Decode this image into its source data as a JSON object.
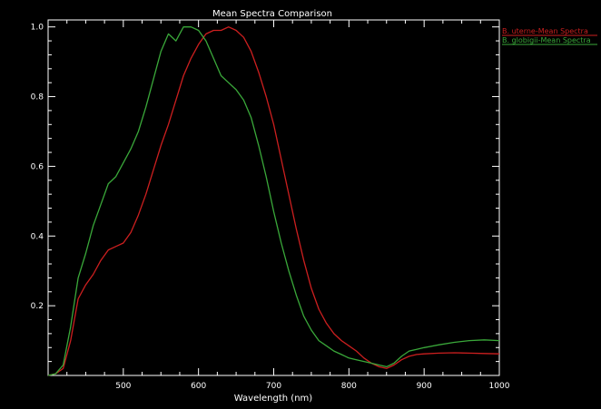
{
  "chart_data": {
    "type": "line",
    "title": "Mean Spectra Comparison",
    "xlabel": "Wavelength (nm)",
    "ylabel": "",
    "xlim": [
      400,
      1000
    ],
    "ylim": [
      0,
      1.02
    ],
    "x_ticks": [
      500,
      600,
      700,
      800,
      900,
      1000
    ],
    "y_ticks": [
      0.2,
      0.4,
      0.6,
      0.8,
      1.0
    ],
    "x_tick_labels": [
      "500",
      "600",
      "700",
      "800",
      "900",
      "1000"
    ],
    "y_tick_labels": [
      "0.2",
      "0.4",
      "0.6",
      "0.8",
      "1.0"
    ],
    "grid": false,
    "legend_position": "top-right-outside",
    "axis_color": "#ffffff",
    "background": "#000000",
    "series": [
      {
        "name": "B. uterne-Mean Spectra",
        "color": "#cc1f1f",
        "x": [
          400,
          410,
          420,
          430,
          440,
          450,
          460,
          470,
          480,
          490,
          500,
          510,
          520,
          530,
          540,
          550,
          560,
          570,
          580,
          590,
          600,
          610,
          620,
          630,
          640,
          650,
          660,
          670,
          680,
          690,
          700,
          710,
          720,
          730,
          740,
          750,
          760,
          770,
          780,
          790,
          800,
          810,
          820,
          830,
          840,
          850,
          860,
          870,
          880,
          890,
          900,
          920,
          940,
          960,
          980,
          1000
        ],
        "y": [
          0.0,
          0.005,
          0.02,
          0.1,
          0.22,
          0.26,
          0.29,
          0.33,
          0.36,
          0.37,
          0.38,
          0.41,
          0.46,
          0.52,
          0.59,
          0.66,
          0.72,
          0.79,
          0.86,
          0.91,
          0.95,
          0.98,
          0.99,
          0.99,
          1.0,
          0.99,
          0.97,
          0.93,
          0.87,
          0.8,
          0.72,
          0.62,
          0.52,
          0.42,
          0.33,
          0.25,
          0.19,
          0.15,
          0.12,
          0.1,
          0.085,
          0.07,
          0.05,
          0.035,
          0.025,
          0.02,
          0.03,
          0.045,
          0.055,
          0.06,
          0.062,
          0.064,
          0.065,
          0.064,
          0.063,
          0.062
        ]
      },
      {
        "name": "B. globigii-Mean Spectra",
        "color": "#3aa83a",
        "x": [
          400,
          410,
          420,
          430,
          440,
          450,
          460,
          470,
          480,
          490,
          500,
          510,
          520,
          530,
          540,
          550,
          560,
          570,
          580,
          590,
          600,
          610,
          620,
          630,
          640,
          650,
          660,
          670,
          680,
          690,
          700,
          710,
          720,
          730,
          740,
          750,
          760,
          770,
          780,
          790,
          800,
          810,
          820,
          830,
          840,
          850,
          860,
          870,
          880,
          890,
          900,
          920,
          940,
          960,
          980,
          1000
        ],
        "y": [
          0.0,
          0.005,
          0.03,
          0.14,
          0.28,
          0.35,
          0.43,
          0.49,
          0.55,
          0.57,
          0.61,
          0.65,
          0.7,
          0.77,
          0.85,
          0.93,
          0.98,
          0.96,
          1.0,
          1.0,
          0.99,
          0.96,
          0.91,
          0.86,
          0.84,
          0.82,
          0.79,
          0.74,
          0.66,
          0.57,
          0.47,
          0.38,
          0.3,
          0.23,
          0.17,
          0.13,
          0.1,
          0.085,
          0.07,
          0.06,
          0.05,
          0.045,
          0.04,
          0.035,
          0.03,
          0.025,
          0.035,
          0.055,
          0.07,
          0.075,
          0.08,
          0.088,
          0.095,
          0.1,
          0.102,
          0.1
        ]
      }
    ]
  }
}
